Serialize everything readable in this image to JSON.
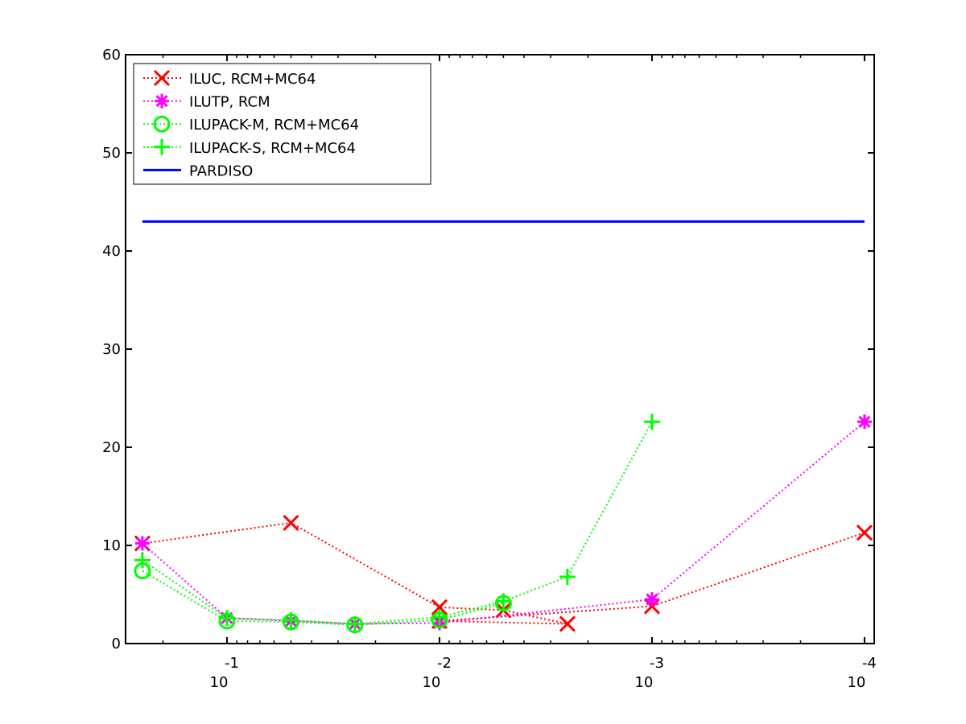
{
  "chart_data": {
    "type": "line",
    "title": "",
    "xlabel": "",
    "ylabel": "",
    "x_scale": "log",
    "x_reversed": true,
    "xlim": [
      0.3,
      9e-05
    ],
    "ylim": [
      0,
      60
    ],
    "yticks": [
      0,
      10,
      20,
      30,
      40,
      50,
      60
    ],
    "xticks": [
      {
        "value": 0.1,
        "base": "10",
        "exponent": "-1"
      },
      {
        "value": 0.01,
        "base": "10",
        "exponent": "-2"
      },
      {
        "value": 0.001,
        "base": "10",
        "exponent": "-3"
      },
      {
        "value": 0.0001,
        "base": "10",
        "exponent": "-4"
      }
    ],
    "grid": false,
    "legend_position": "top-left",
    "series": [
      {
        "name": "ILUC, RCM+MC64",
        "color": "#ff0000",
        "marker": "x",
        "line_style": "dotted",
        "points": [
          [
            0.25,
            10.2
          ],
          [
            0.05,
            12.3
          ],
          [
            0.01,
            3.7
          ],
          [
            0.005,
            3.4
          ],
          [
            0.0025,
            2.0
          ],
          [
            0.01,
            2.3
          ],
          [
            0.001,
            3.8
          ],
          [
            0.0001,
            11.3
          ]
        ]
      },
      {
        "name": "ILUTP, RCM",
        "color": "#ff00ff",
        "marker": "asterisk",
        "line_style": "dotted",
        "points": [
          [
            0.25,
            10.2
          ],
          [
            0.1,
            2.6
          ],
          [
            0.05,
            2.3
          ],
          [
            0.025,
            2.0
          ],
          [
            0.01,
            2.1
          ],
          [
            0.001,
            4.5
          ],
          [
            0.0001,
            22.6
          ]
        ]
      },
      {
        "name": "ILUPACK-M, RCM+MC64",
        "color": "#00ff00",
        "marker": "circle",
        "line_style": "dotted",
        "points": [
          [
            0.25,
            7.4
          ],
          [
            0.1,
            2.3
          ],
          [
            0.05,
            2.2
          ],
          [
            0.025,
            1.9
          ],
          [
            0.01,
            2.4
          ],
          [
            0.005,
            4.1
          ]
        ]
      },
      {
        "name": "ILUPACK-S, RCM+MC64",
        "color": "#00ff00",
        "marker": "plus",
        "line_style": "dotted",
        "points": [
          [
            0.25,
            8.5
          ],
          [
            0.1,
            2.6
          ],
          [
            0.05,
            2.4
          ],
          [
            0.025,
            2.0
          ],
          [
            0.01,
            2.7
          ],
          [
            0.005,
            4.3
          ],
          [
            0.0025,
            6.8
          ],
          [
            0.001,
            22.6
          ]
        ]
      },
      {
        "name": "PARDISO",
        "color": "#0000ff",
        "marker": "none",
        "line_style": "solid",
        "points": [
          [
            0.25,
            43
          ],
          [
            0.0001,
            43
          ]
        ]
      }
    ]
  }
}
